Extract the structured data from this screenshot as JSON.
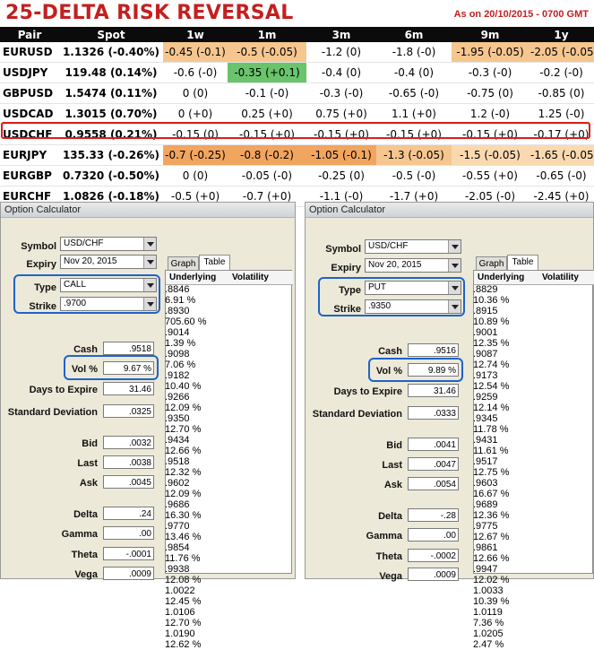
{
  "header": {
    "title": "25-DELTA RISK REVERSAL",
    "as_of": "As on 20/10/2015 - 0700 GMT"
  },
  "table": {
    "columns": [
      "Pair",
      "Spot",
      "1w",
      "1m",
      "3m",
      "6m",
      "9m",
      "1y"
    ],
    "rows": [
      {
        "pair": "EURUSD",
        "spot": "1.1326 (-0.40%)",
        "cells": [
          "-0.45 (-0.1)",
          "-0.5 (-0.05)",
          "-1.2 (0)",
          "-1.8 (-0)",
          "-1.95 (-0.05)",
          "-2.05 (-0.05)"
        ]
      },
      {
        "pair": "USDJPY",
        "spot": "119.48 (0.14%)",
        "cells": [
          "-0.6 (-0)",
          "-0.35 (+0.1)",
          "-0.4 (0)",
          "-0.4 (0)",
          "-0.3 (-0)",
          "-0.2 (-0)"
        ]
      },
      {
        "pair": "GBPUSD",
        "spot": "1.5474 (0.11%)",
        "cells": [
          "0 (0)",
          "-0.1 (-0)",
          "-0.3 (-0)",
          "-0.65 (-0)",
          "-0.75 (0)",
          "-0.85 (0)"
        ]
      },
      {
        "pair": "USDCAD",
        "spot": "1.3015 (0.70%)",
        "cells": [
          "0 (+0)",
          "0.25 (+0)",
          "0.75 (+0)",
          "1.1 (+0)",
          "1.2 (-0)",
          "1.25 (-0)"
        ]
      },
      {
        "pair": "USDCHF",
        "spot": "0.9558 (0.21%)",
        "cells": [
          "-0.15 (0)",
          "-0.15 (+0)",
          "-0.15 (+0)",
          "-0.15 (+0)",
          "-0.15 (+0)",
          "-0.17 (+0)"
        ]
      },
      {
        "pair": "EURJPY",
        "spot": "135.33 (-0.26%)",
        "cells": [
          "-0.7 (-0.25)",
          "-0.8 (-0.2)",
          "-1.05 (-0.1)",
          "-1.3 (-0.05)",
          "-1.5 (-0.05)",
          "-1.65 (-0.05)"
        ]
      },
      {
        "pair": "EURGBP",
        "spot": "0.7320 (-0.50%)",
        "cells": [
          "0 (0)",
          "-0.05 (-0)",
          "-0.25 (0)",
          "-0.5 (-0)",
          "-0.55 (+0)",
          "-0.65 (-0)"
        ]
      },
      {
        "pair": "EURCHF",
        "spot": "1.0826 (-0.18%)",
        "cells": [
          "-0.5 (+0)",
          "-0.7 (+0)",
          "-1.1 (-0)",
          "-1.7 (+0)",
          "-2.05 (-0)",
          "-2.45 (+0)"
        ]
      }
    ]
  },
  "colors": {
    "title_red": "#c41f1f",
    "light_orange": "#f6c68f",
    "dark_orange": "#f2a55f",
    "green": "#69c46b",
    "highlight_red": "#d81d1d",
    "circle_blue": "#1f63c9"
  },
  "calc_left": {
    "window_title": "Option Calculator",
    "symbol_label": "Symbol",
    "symbol": "USD/CHF",
    "expiry_label": "Expiry",
    "expiry": "Nov 20, 2015",
    "type_label": "Type",
    "type": "CALL",
    "strike_label": "Strike",
    "strike": ".9700",
    "cash_label": "Cash",
    "cash": ".9518",
    "vol_label": "Vol %",
    "vol": "9.67 %",
    "days_label": "Days to Expire",
    "days": "31.46",
    "std_label": "Standard Deviation",
    "std": ".0325",
    "bid_label": "Bid",
    "bid": ".0032",
    "last_label": "Last",
    "last": ".0038",
    "ask_label": "Ask",
    "ask": ".0045",
    "delta_label": "Delta",
    "delta": ".24",
    "gamma_label": "Gamma",
    "gamma": ".00",
    "theta_label": "Theta",
    "theta": "-.0001",
    "vega_label": "Vega",
    "vega": ".0009",
    "tab_graph": "Graph",
    "tab_table": "Table",
    "col_underlying": "Underlying",
    "col_vol": "Volatility",
    "grid": [
      [
        ".8846",
        "6.91 %"
      ],
      [
        ".8930",
        "705.60 %"
      ],
      [
        ".9014",
        "1.39 %"
      ],
      [
        ".9098",
        "7.06 %"
      ],
      [
        ".9182",
        "10.40 %"
      ],
      [
        ".9266",
        "12.09 %"
      ],
      [
        ".9350",
        "12.70 %"
      ],
      [
        ".9434",
        "12.66 %"
      ],
      [
        ".9518",
        "12.32 %"
      ],
      [
        ".9602",
        "12.09 %"
      ],
      [
        ".9686",
        "16.30 %"
      ],
      [
        ".9770",
        "13.46 %"
      ],
      [
        ".9854",
        "11.76 %"
      ],
      [
        ".9938",
        "12.08 %"
      ],
      [
        "1.0022",
        "12.45 %"
      ],
      [
        "1.0106",
        "12.70 %"
      ],
      [
        "1.0190",
        "12.62 %"
      ]
    ]
  },
  "calc_right": {
    "window_title": "Option Calculator",
    "symbol_label": "Symbol",
    "symbol": "USD/CHF",
    "expiry_label": "Expiry",
    "expiry": "Nov 20, 2015",
    "type_label": "Type",
    "type": "PUT",
    "strike_label": "Strike",
    "strike": ".9350",
    "cash_label": "Cash",
    "cash": ".9516",
    "vol_label": "Vol %",
    "vol": "9.89 %",
    "days_label": "Days to Expire",
    "days": "31.46",
    "std_label": "Standard Deviation",
    "std": ".0333",
    "bid_label": "Bid",
    "bid": ".0041",
    "last_label": "Last",
    "last": ".0047",
    "ask_label": "Ask",
    "ask": ".0054",
    "delta_label": "Delta",
    "delta": "-.28",
    "gamma_label": "Gamma",
    "gamma": ".00",
    "theta_label": "Theta",
    "theta": "-.0002",
    "vega_label": "Vega",
    "vega": ".0009",
    "tab_graph": "Graph",
    "tab_table": "Table",
    "col_underlying": "Underlying",
    "col_vol": "Volatility",
    "grid": [
      [
        ".8829",
        "10.36 %"
      ],
      [
        ".8915",
        "10.89 %"
      ],
      [
        ".9001",
        "12.35 %"
      ],
      [
        ".9087",
        "12.74 %"
      ],
      [
        ".9173",
        "12.54 %"
      ],
      [
        ".9259",
        "12.14 %"
      ],
      [
        ".9345",
        "11.78 %"
      ],
      [
        ".9431",
        "11.61 %"
      ],
      [
        ".9517",
        "12.75 %"
      ],
      [
        ".9603",
        "16.67 %"
      ],
      [
        ".9689",
        "12.36 %"
      ],
      [
        ".9775",
        "12.67 %"
      ],
      [
        ".9861",
        "12.66 %"
      ],
      [
        ".9947",
        "12.02 %"
      ],
      [
        "1.0033",
        "10.39 %"
      ],
      [
        "1.0119",
        "7.36 %"
      ],
      [
        "1.0205",
        "2.47 %"
      ]
    ]
  }
}
